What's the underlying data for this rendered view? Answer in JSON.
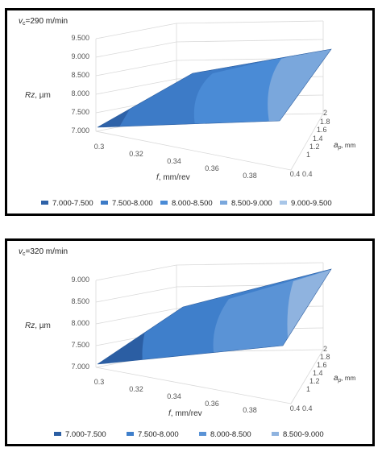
{
  "chart_data": [
    {
      "type": "surface",
      "title_var": "v",
      "title_sub": "c",
      "title_rest": "=290 m/min",
      "ylabel_var": "Rz",
      "ylabel_rest": ", µm",
      "xlabel_var": "f",
      "xlabel_rest": ", mm/rev",
      "zlabel_var": "a",
      "zlabel_sub": "p",
      "zlabel_rest": ", mm",
      "y_ticks": [
        "7.000",
        "7.500",
        "8.000",
        "8.500",
        "9.000",
        "9.500"
      ],
      "x_ticks": [
        "0.3",
        "0.32",
        "0.34",
        "0.36",
        "0.38",
        "0.4"
      ],
      "z_ticks": [
        "0.4",
        "1",
        "1.2",
        "1.4",
        "1.6",
        "1.8",
        "2"
      ],
      "ylim": [
        7.0,
        9.5
      ],
      "legend": [
        {
          "label": "7.000-7.500",
          "color": "#2e62a8"
        },
        {
          "label": "7.500-8.000",
          "color": "#3d7bc7"
        },
        {
          "label": "8.000-8.500",
          "color": "#4a8bd6"
        },
        {
          "label": "8.500-9.000",
          "color": "#7aa7dc"
        },
        {
          "label": "9.000-9.500",
          "color": "#a8c6e8"
        }
      ]
    },
    {
      "type": "surface",
      "title_var": "v",
      "title_sub": "c",
      "title_rest": "=320 m/min",
      "ylabel_var": "Rz",
      "ylabel_rest": ", µm",
      "xlabel_var": "f",
      "xlabel_rest": ", mm/rev",
      "zlabel_var": "a",
      "zlabel_sub": "p",
      "zlabel_rest": ", mm",
      "y_ticks": [
        "7.000",
        "7.500",
        "8.000",
        "8.500",
        "9.000"
      ],
      "x_ticks": [
        "0.3",
        "0.32",
        "0.34",
        "0.36",
        "0.38",
        "0.4"
      ],
      "z_ticks": [
        "0.4",
        "1",
        "1.2",
        "1.4",
        "1.6",
        "1.8",
        "2"
      ],
      "ylim": [
        7.0,
        9.0
      ],
      "legend": [
        {
          "label": "7.000-7.500",
          "color": "#2b5ea3"
        },
        {
          "label": "7.500-8.000",
          "color": "#3f7fcb"
        },
        {
          "label": "8.000-8.500",
          "color": "#5a93d6"
        },
        {
          "label": "8.500-9.000",
          "color": "#8fb3df"
        }
      ]
    }
  ]
}
